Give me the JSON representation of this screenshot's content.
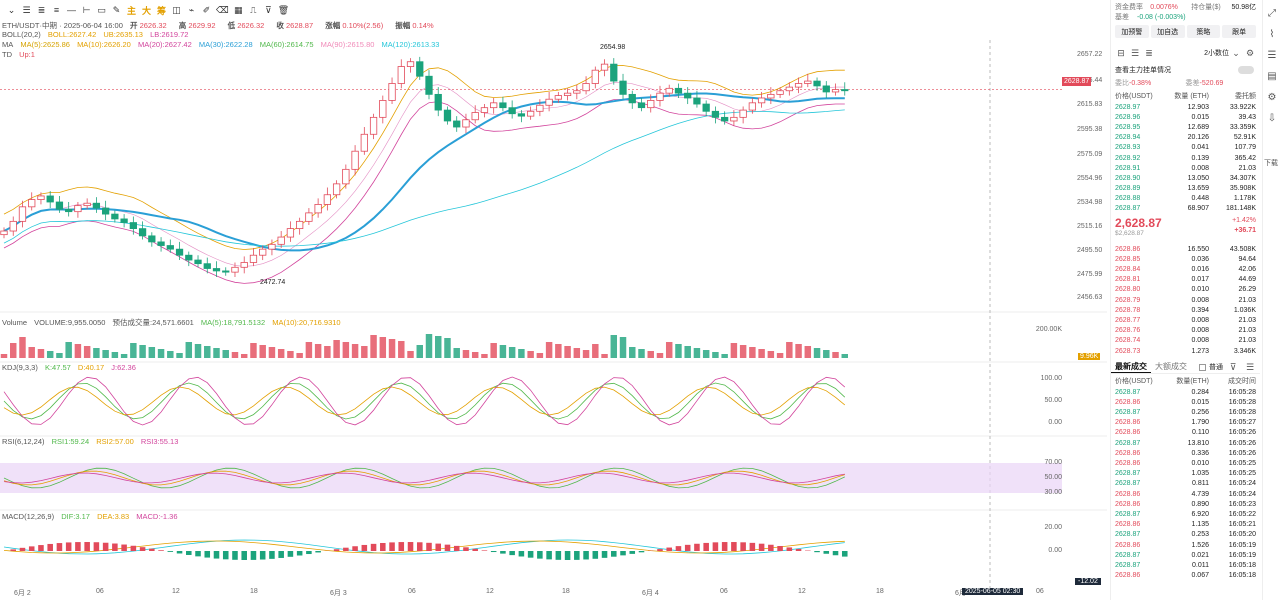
{
  "toolbar": {
    "items": [
      {
        "name": "chevron-down-icon",
        "glyph": "⌄"
      },
      {
        "name": "menu-icon",
        "glyph": "☰"
      },
      {
        "name": "list-icon",
        "glyph": "≣"
      },
      {
        "name": "tools-icon",
        "glyph": "≡"
      },
      {
        "name": "line-icon",
        "glyph": "—"
      },
      {
        "name": "ray-icon",
        "glyph": "⊢"
      },
      {
        "name": "rect-icon",
        "glyph": "▭"
      },
      {
        "name": "brush-icon",
        "glyph": "✎"
      },
      {
        "name": "zhu-label",
        "glyph": "主",
        "ct": true
      },
      {
        "name": "da-label",
        "glyph": "大",
        "ct": true
      },
      {
        "name": "chou-label",
        "glyph": "筹",
        "ct": true
      },
      {
        "name": "layout-icon",
        "glyph": "◫"
      },
      {
        "name": "magnet-icon",
        "glyph": "⌁"
      },
      {
        "name": "pen-icon",
        "glyph": "✐"
      },
      {
        "name": "eraser-icon",
        "glyph": "⌫"
      },
      {
        "name": "grid-icon",
        "glyph": "▦"
      },
      {
        "name": "ruler-icon",
        "glyph": "⎍"
      },
      {
        "name": "filter-icon",
        "glyph": "⊽"
      },
      {
        "name": "trash-icon",
        "glyph": "🗑"
      }
    ]
  },
  "header": {
    "symbol": "ETH/USDT·中期 · 2025-06-04 16:00",
    "open_label": "开",
    "open": "2626.32",
    "high_label": "高",
    "high": "2629.92",
    "low_label": "低",
    "low": "2626.32",
    "close_label": "收",
    "close": "2628.87",
    "change_label": "涨幅",
    "change": "0.10%(2.56)",
    "amp_label": "振幅",
    "amp": "0.14%"
  },
  "indicators": {
    "boll": "BOLL(20,2)",
    "boll_values": [
      "BOLL:2627.42",
      "UB:2635.13",
      "LB:2619.72"
    ],
    "ma": "MA",
    "ma_values": [
      "MA(5):2625.86",
      "MA(10):2626.20",
      "MA(20):2627.42",
      "MA(30):2622.28",
      "MA(60):2614.75",
      "MA(90):2615.80",
      "MA(120):2613.33"
    ],
    "td": "TD",
    "td_value": "Up:1"
  },
  "volume": {
    "label": "Volume",
    "vol": "VOLUME:9,955.0050",
    "est": "预估成交量:24,571.6601",
    "ma5": "MA(5):18,791.5132",
    "ma10": "MA(10):20,716.9310",
    "ticks": [
      "200.00K"
    ],
    "last_tag": "9.96K"
  },
  "kdj": {
    "label": "KDJ(9,3,3)",
    "k": "K:47.57",
    "d": "D:40.17",
    "j": "J:62.36",
    "ticks": [
      "100.00",
      "50.00",
      "0.00"
    ]
  },
  "rsi": {
    "label": "RSI(6,12,24)",
    "r1": "RSI1:59.24",
    "r2": "RSI2:57.00",
    "r3": "RSI3:55.13",
    "ticks": [
      "70.00",
      "50.00",
      "30.00"
    ]
  },
  "macd": {
    "label": "MACD(12,26,9)",
    "dif": "DIF:3.17",
    "dea": "DEA:3.83",
    "macd": "MACD:-1.36",
    "ticks": [
      "20.00",
      "0.00"
    ],
    "last_tag": "-12.02"
  },
  "price_axis": {
    "ticks": [
      "2657.22",
      "2636.44",
      "2615.83",
      "2595.38",
      "2575.09",
      "2554.96",
      "2534.98",
      "2515.16",
      "2495.50",
      "2475.99",
      "2456.63"
    ],
    "current_tag": "2628.87",
    "high_mark": "2654.98",
    "low_mark": "2472.74"
  },
  "x_axis": {
    "ticks": [
      "6月 2",
      "06",
      "12",
      "18",
      "6月 3",
      "06",
      "12",
      "18",
      "6月 4",
      "06",
      "12",
      "18",
      "6月",
      "06"
    ],
    "cursor_time": "2025-06-05 02:30"
  },
  "chart_data": {
    "type": "candlestick",
    "note_series": "OHLC read approximately from candles; x = index of 30-minute bar",
    "ylim": [
      2450,
      2665
    ],
    "closes": [
      2512,
      2520,
      2532,
      2538,
      2541,
      2536,
      2530,
      2528,
      2533,
      2535,
      2531,
      2526,
      2522,
      2519,
      2514,
      2508,
      2503,
      2500,
      2497,
      2492,
      2488,
      2485,
      2481,
      2479,
      2478,
      2482,
      2486,
      2492,
      2497,
      2501,
      2507,
      2514,
      2520,
      2527,
      2534,
      2542,
      2551,
      2563,
      2578,
      2592,
      2606,
      2620,
      2634,
      2648,
      2652,
      2640,
      2625,
      2612,
      2603,
      2598,
      2604,
      2610,
      2614,
      2618,
      2614,
      2609,
      2607,
      2611,
      2616,
      2621,
      2624,
      2626,
      2628,
      2634,
      2645,
      2650,
      2636,
      2625,
      2618,
      2614,
      2620,
      2626,
      2630,
      2626,
      2622,
      2617,
      2611,
      2606,
      2603,
      2606,
      2612,
      2618,
      2622,
      2625,
      2628,
      2631,
      2634,
      2636,
      2632,
      2627,
      2629,
      2628
    ],
    "highlights": {
      "max": 2654.98,
      "min": 2472.74
    },
    "current_price": 2628.87
  },
  "panel": {
    "funding_label": "资金费率",
    "funding": "0.0076%",
    "position_label": "持仓量($)",
    "position": "50.98亿",
    "basis_label": "基差",
    "basis": "-0.08 (-0.003%)",
    "buttons": [
      "加预警",
      "加自选",
      "策略",
      "跟单"
    ],
    "interval": "2小数位",
    "toggle_label": "查看主力挂单情况",
    "ratio_label": "委比",
    "ratio": "-0.38%",
    "diff_label": "委差",
    "diff": "-520.69",
    "ob_headers": [
      "价格(USDT)",
      "数量 (ETH)",
      "委托额"
    ],
    "asks": [
      [
        "2628.97",
        "12.903",
        "33.922K"
      ],
      [
        "2628.96",
        "0.015",
        "39.43"
      ],
      [
        "2628.95",
        "12.689",
        "33.359K"
      ],
      [
        "2628.94",
        "20.126",
        "52.91K"
      ],
      [
        "2628.93",
        "0.041",
        "107.79"
      ],
      [
        "2628.92",
        "0.139",
        "365.42"
      ],
      [
        "2628.91",
        "0.008",
        "21.03"
      ],
      [
        "2628.90",
        "13.050",
        "34.307K"
      ],
      [
        "2628.89",
        "13.659",
        "35.908K"
      ],
      [
        "2628.88",
        "0.448",
        "1.178K"
      ],
      [
        "2628.87",
        "68.907",
        "181.148K"
      ]
    ],
    "mid_price": "2,628.87",
    "mid_sub": "$2,628.87",
    "mid_pct": "+1.42%",
    "mid_chg": "+36.71",
    "bids": [
      [
        "2628.86",
        "16.550",
        "43.508K"
      ],
      [
        "2628.85",
        "0.036",
        "94.64"
      ],
      [
        "2628.84",
        "0.016",
        "42.06"
      ],
      [
        "2628.81",
        "0.017",
        "44.69"
      ],
      [
        "2628.80",
        "0.010",
        "26.29"
      ],
      [
        "2628.79",
        "0.008",
        "21.03"
      ],
      [
        "2628.78",
        "0.394",
        "1.036K"
      ],
      [
        "2628.77",
        "0.008",
        "21.03"
      ],
      [
        "2628.76",
        "0.008",
        "21.03"
      ],
      [
        "2628.74",
        "0.008",
        "21.03"
      ],
      [
        "2628.73",
        "1.273",
        "3.346K"
      ]
    ],
    "tabs": [
      "最新成交",
      "大额成交"
    ],
    "normal_label": "普通",
    "trade_headers": [
      "价格(USDT)",
      "数量(ETH)",
      "成交时间"
    ],
    "trades": [
      [
        "2628.87",
        "0.284",
        "16:05:28",
        "g"
      ],
      [
        "2628.86",
        "0.015",
        "16:05:28",
        "r"
      ],
      [
        "2628.87",
        "0.256",
        "16:05:28",
        "g"
      ],
      [
        "2628.86",
        "1.790",
        "16:05:27",
        "r"
      ],
      [
        "2628.86",
        "0.110",
        "16:05:26",
        "r"
      ],
      [
        "2628.87",
        "13.810",
        "16:05:26",
        "g"
      ],
      [
        "2628.86",
        "0.336",
        "16:05:26",
        "r"
      ],
      [
        "2628.86",
        "0.010",
        "16:05:25",
        "r"
      ],
      [
        "2628.87",
        "1.035",
        "16:05:25",
        "g"
      ],
      [
        "2628.87",
        "0.811",
        "16:05:24",
        "g"
      ],
      [
        "2628.86",
        "4.739",
        "16:05:24",
        "r"
      ],
      [
        "2628.86",
        "0.890",
        "16:05:23",
        "r"
      ],
      [
        "2628.87",
        "6.920",
        "16:05:22",
        "g"
      ],
      [
        "2628.86",
        "1.135",
        "16:05:21",
        "r"
      ],
      [
        "2628.87",
        "0.253",
        "16:05:20",
        "g"
      ],
      [
        "2628.86",
        "1.526",
        "16:05:19",
        "r"
      ],
      [
        "2628.87",
        "0.021",
        "16:05:19",
        "g"
      ],
      [
        "2628.87",
        "0.011",
        "16:05:18",
        "g"
      ],
      [
        "2628.86",
        "0.067",
        "16:05:18",
        "r"
      ]
    ]
  },
  "rail": {
    "items": [
      {
        "name": "expand-icon",
        "glyph": "⤢"
      },
      {
        "name": "chart-icon",
        "glyph": "⌇"
      },
      {
        "name": "list-icon",
        "glyph": "☰"
      },
      {
        "name": "book-icon",
        "glyph": "▤"
      },
      {
        "name": "settings-icon",
        "glyph": "⚙"
      },
      {
        "name": "download-icon",
        "glyph": "⇩"
      }
    ],
    "download_label": "下载"
  },
  "colors": {
    "up": "#e24a5a",
    "down": "#1ba37c",
    "boll": "#e3a000",
    "ma_blue": "#2a9fd6",
    "ma_pink": "#d2449c"
  }
}
